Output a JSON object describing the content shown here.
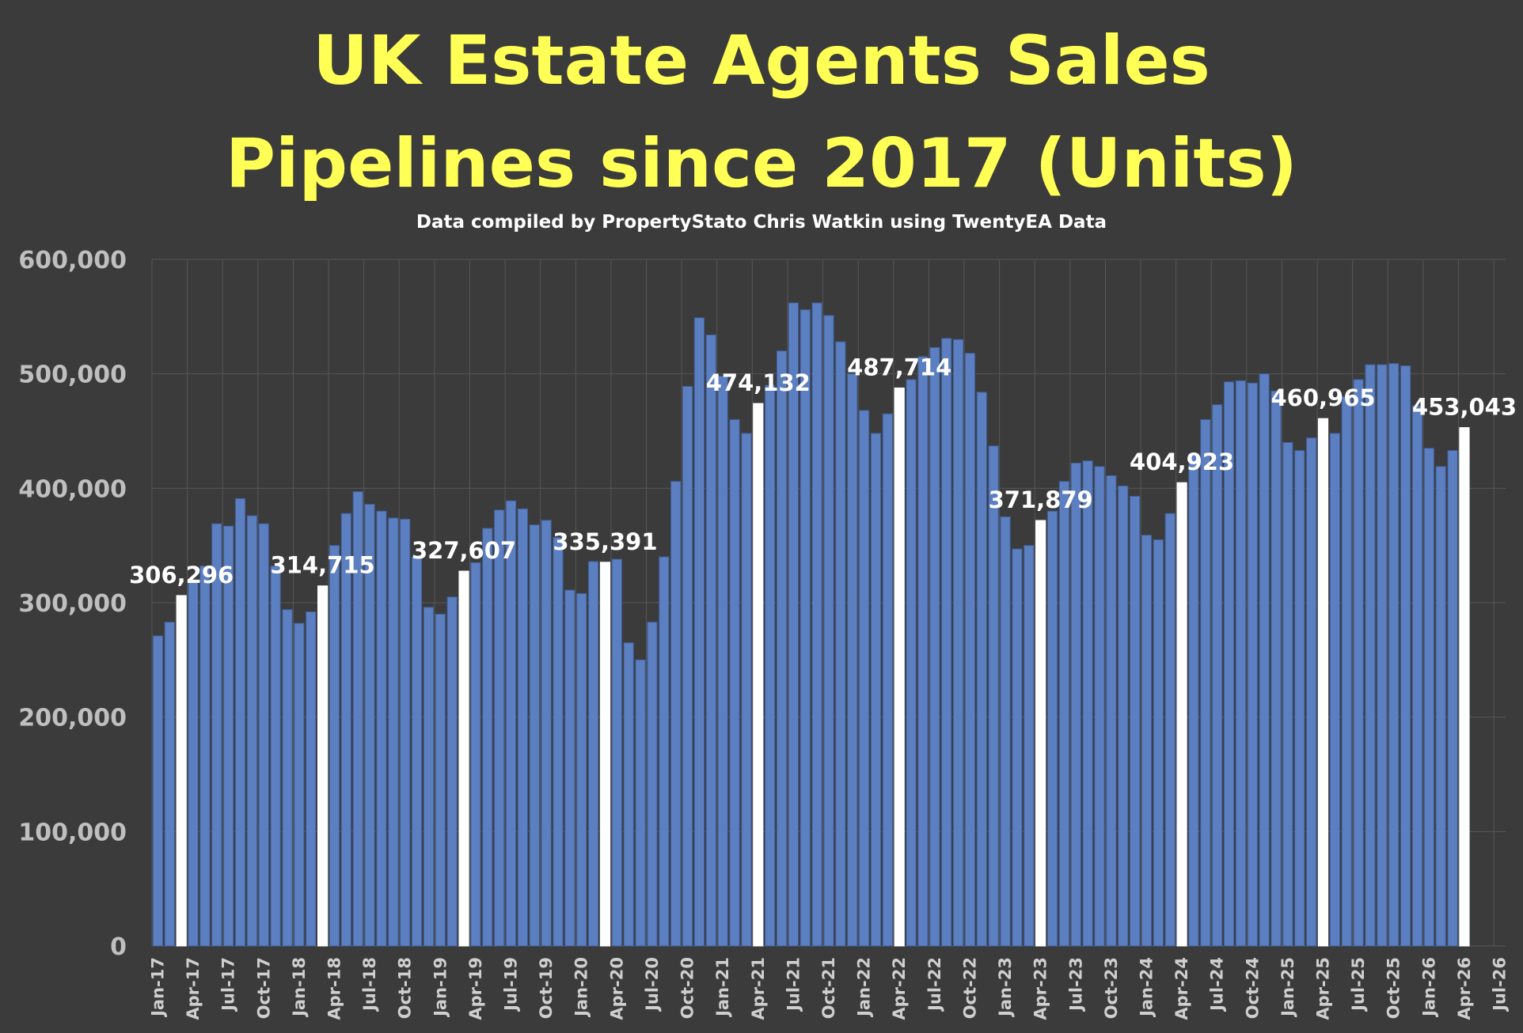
{
  "colors": {
    "background": "#3b3b3b",
    "title": "#ffff55",
    "bar": "#5b7fc0",
    "bar_border": "#3f5f9c",
    "highlight_bar": "#ffffff",
    "grid": "#575757"
  },
  "chart_data": {
    "type": "bar",
    "title_lines": [
      "UK Estate Agents Sales",
      "Pipelines since 2017 (Units)"
    ],
    "subtitle": "Data compiled by PropertyStato Chris Watkin using TwentyEA Data",
    "xlabel": "",
    "ylabel": "",
    "ylim": [
      0,
      600000
    ],
    "yticks": [
      "0",
      "100,000",
      "200,000",
      "300,000",
      "400,000",
      "500,000",
      "600,000"
    ],
    "ytick_values": [
      0,
      100000,
      200000,
      300000,
      400000,
      500000,
      600000
    ],
    "xlim": [
      "Jan-17",
      "Jul-26"
    ],
    "xticks": [
      "Jan-17",
      "Apr-17",
      "Jul-17",
      "Oct-17",
      "Jan-18",
      "Apr-18",
      "Jul-18",
      "Oct-18",
      "Jan-19",
      "Apr-19",
      "Jul-19",
      "Oct-19",
      "Jan-20",
      "Apr-20",
      "Jul-20",
      "Oct-20",
      "Jan-21",
      "Apr-21",
      "Jul-21",
      "Oct-21",
      "Jan-22",
      "Apr-22",
      "Jul-22",
      "Oct-22",
      "Jan-23",
      "Apr-23",
      "Jul-23",
      "Oct-23",
      "Jan-24",
      "Apr-24",
      "Jul-24",
      "Oct-24",
      "Jan-25",
      "Apr-25",
      "Jul-25",
      "Oct-25",
      "Jan-26",
      "Apr-26",
      "Jul-26"
    ],
    "grid": true,
    "legend": "none",
    "values": [
      271000,
      283000,
      306296,
      318000,
      332000,
      369000,
      367000,
      391000,
      376000,
      369000,
      332000,
      294000,
      282000,
      292000,
      314715,
      350000,
      378000,
      397000,
      386000,
      380000,
      374000,
      373000,
      340000,
      296000,
      290000,
      305000,
      327607,
      335000,
      365000,
      381000,
      389000,
      382000,
      368000,
      372000,
      357000,
      311000,
      308000,
      336000,
      335391,
      338000,
      265000,
      250000,
      283000,
      340000,
      406000,
      489000,
      549000,
      534000,
      498000,
      460000,
      448000,
      474132,
      490000,
      520000,
      562000,
      556000,
      562000,
      551000,
      528000,
      500000,
      468000,
      448000,
      465000,
      487714,
      495000,
      515000,
      523000,
      531000,
      530000,
      518000,
      484000,
      437000,
      375000,
      347000,
      350000,
      371879,
      380000,
      406000,
      422000,
      424000,
      419000,
      411000,
      402000,
      393000,
      359000,
      355000,
      378000,
      404923,
      430000,
      460000,
      473000,
      493000,
      494000,
      492000,
      500000,
      485000,
      440000,
      433000,
      444000,
      460965,
      448000,
      480000,
      495000,
      508000,
      508000,
      509000,
      507000,
      472000,
      435000,
      419000,
      433000,
      453043
    ],
    "highlighted_bars": [
      {
        "index": 2,
        "label": "306,296"
      },
      {
        "index": 14,
        "label": "314,715"
      },
      {
        "index": 26,
        "label": "327,607"
      },
      {
        "index": 38,
        "label": "335,391"
      },
      {
        "index": 51,
        "label": "474,132"
      },
      {
        "index": 63,
        "label": "487,714"
      },
      {
        "index": 75,
        "label": "371,879"
      },
      {
        "index": 87,
        "label": "404,923"
      },
      {
        "index": 99,
        "label": "460,965"
      },
      {
        "index": 111,
        "label": "453,043"
      }
    ]
  }
}
